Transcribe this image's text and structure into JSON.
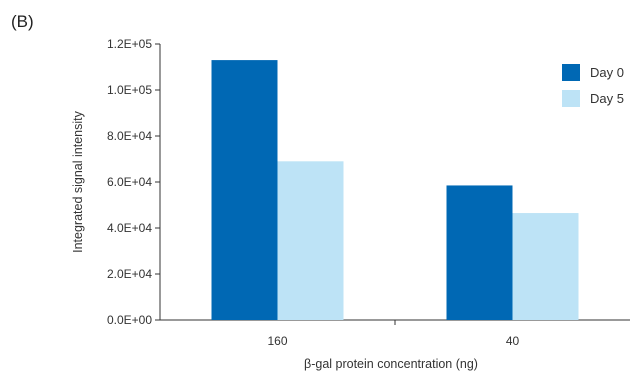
{
  "panel_label": "(B)",
  "chart_data": {
    "type": "bar",
    "title": "",
    "xlabel": "β-gal protein concentration (ng)",
    "ylabel": "Integrated signal intensity",
    "categories": [
      "160",
      "40"
    ],
    "series": [
      {
        "name": "Day 0",
        "color": "#0068b4",
        "values": [
          113000,
          58500
        ]
      },
      {
        "name": "Day 5",
        "color": "#bde3f6",
        "values": [
          69000,
          46500
        ]
      }
    ],
    "ylim": [
      0,
      120000
    ],
    "yticks": [
      0,
      20000,
      40000,
      60000,
      80000,
      100000,
      120000
    ],
    "ytick_labels": [
      "0.0E+00",
      "2.0E+04",
      "4.0E+04",
      "6.0E+04",
      "8.0E+04",
      "1.0E+05",
      "1.2E+05"
    ],
    "grid": false,
    "legend_position": "top-right"
  }
}
